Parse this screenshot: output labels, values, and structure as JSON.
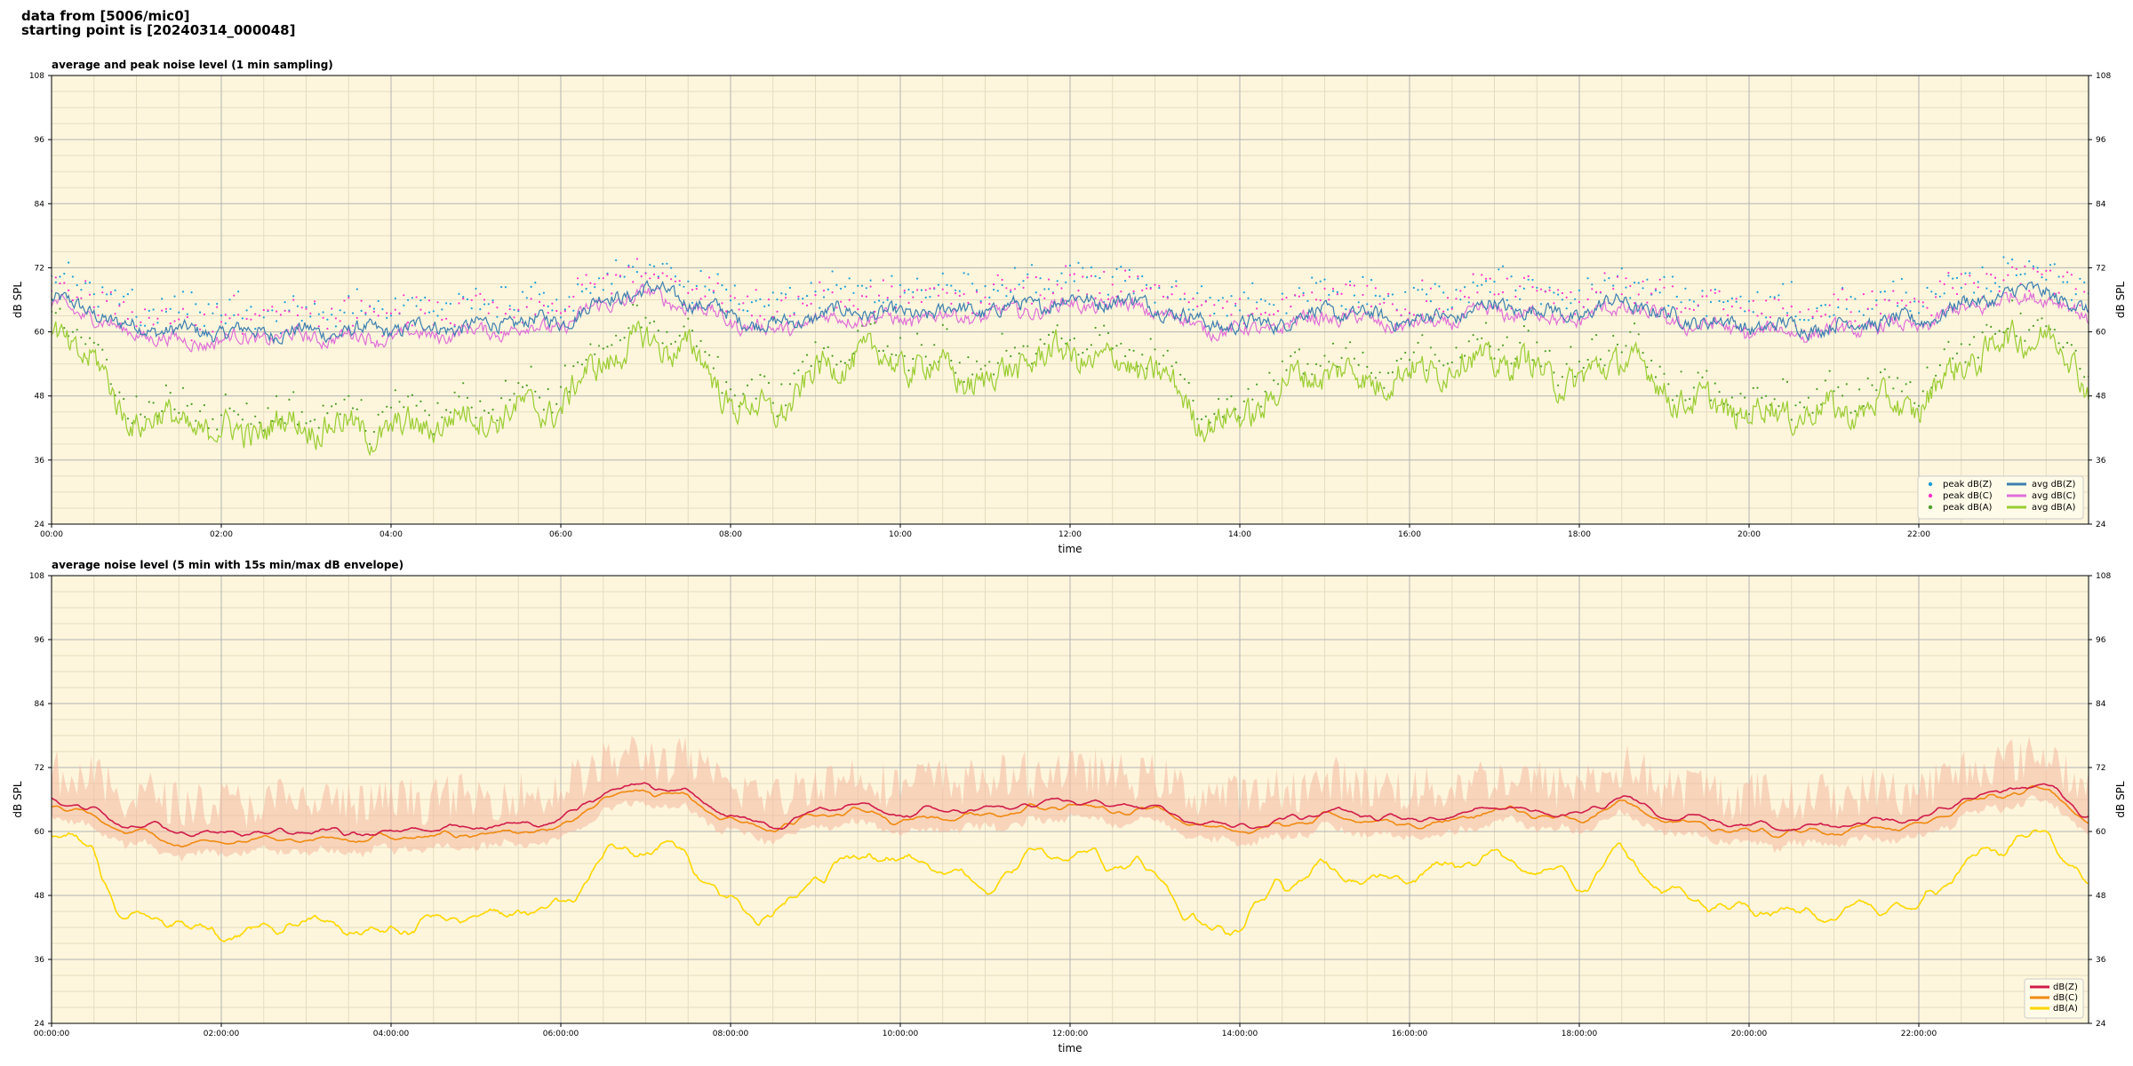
{
  "header": {
    "line1": "data from [5006/mic0]",
    "line2": "starting point is [20240314_000048]"
  },
  "colors": {
    "plot_bg": "#fdf6dc",
    "grid_major": "#b3b3b3",
    "grid_minor": "#e5dcc0",
    "peak_z": "#1f9ed8",
    "peak_c": "#ff33cc",
    "peak_a": "#4d9e28",
    "avg_z": "#3c7fb1",
    "avg_c": "#e070d8",
    "avg_a": "#9acd32",
    "env_z": "#d01c4a",
    "env_c": "#f08a10",
    "env_a": "#ffd700",
    "envelope_fill": "#f4b8a0"
  },
  "chart_data": [
    {
      "type": "line",
      "title": "average and peak noise level (1 min sampling)",
      "xlabel": "time",
      "ylabel": "dB SPL",
      "x_range_hours": [
        0,
        24
      ],
      "x_tick_labels": [
        "00:00",
        "02:00",
        "04:00",
        "06:00",
        "08:00",
        "10:00",
        "12:00",
        "14:00",
        "16:00",
        "18:00",
        "20:00",
        "22:00"
      ],
      "ylim": [
        24,
        108
      ],
      "y_ticks": [
        24,
        36,
        48,
        60,
        72,
        84,
        96,
        108
      ],
      "grid": true,
      "legend_position": "lower-right",
      "legend": [
        "peak dB(Z)",
        "peak dB(C)",
        "peak dB(A)",
        "avg dB(Z)",
        "avg dB(C)",
        "avg dB(A)"
      ],
      "series": [
        {
          "name": "avg dB(Z)",
          "x": [
            0,
            0.5,
            0.8,
            1.0,
            1.5,
            2.0,
            2.5,
            3.0,
            3.5,
            4.0,
            4.5,
            5.0,
            5.5,
            6.0,
            6.5,
            7.0,
            7.5,
            8.0,
            8.5,
            9.0,
            9.5,
            10.0,
            10.5,
            11.0,
            11.5,
            12.0,
            12.5,
            13.0,
            13.5,
            14.0,
            14.5,
            15.0,
            15.5,
            16.0,
            16.5,
            17.0,
            17.5,
            18.0,
            18.5,
            19.0,
            19.5,
            20.0,
            20.5,
            21.0,
            21.5,
            22.0,
            22.5,
            23.0,
            23.5,
            24.0
          ],
          "y": [
            66,
            64,
            61,
            61,
            60,
            60,
            60,
            60,
            60,
            60.5,
            61,
            61,
            62,
            62,
            66,
            68,
            66,
            63,
            61,
            63,
            64,
            63,
            64,
            64,
            65,
            66,
            66,
            65,
            62,
            61,
            62,
            64,
            63,
            62,
            63,
            65,
            64,
            63,
            66,
            63,
            62,
            61,
            61,
            61,
            62,
            62,
            65,
            67,
            68,
            63
          ]
        },
        {
          "name": "avg dB(C)",
          "x": [
            0,
            0.5,
            0.8,
            1.0,
            1.5,
            2.0,
            2.5,
            3.0,
            3.5,
            4.0,
            4.5,
            5.0,
            5.5,
            6.0,
            6.5,
            7.0,
            7.5,
            8.0,
            8.5,
            9.0,
            9.5,
            10.0,
            10.5,
            11.0,
            11.5,
            12.0,
            12.5,
            13.0,
            13.5,
            14.0,
            14.5,
            15.0,
            15.5,
            16.0,
            16.5,
            17.0,
            17.5,
            18.0,
            18.5,
            19.0,
            19.5,
            20.0,
            20.5,
            21.0,
            21.5,
            22.0,
            22.5,
            23.0,
            23.5,
            24.0
          ],
          "y": [
            65,
            63,
            60,
            60,
            58,
            58.5,
            59,
            59,
            59,
            59,
            59.5,
            60,
            60.5,
            61,
            65,
            67,
            65,
            62,
            60,
            62,
            63,
            62,
            63,
            63,
            64,
            65,
            65,
            64,
            61,
            60,
            61,
            63,
            62,
            61,
            62,
            64,
            63,
            62,
            65,
            62,
            61,
            60,
            60,
            60,
            61,
            61,
            64,
            66,
            67,
            62
          ]
        },
        {
          "name": "avg dB(A)",
          "x": [
            0,
            0.5,
            0.8,
            1.0,
            1.5,
            2.0,
            2.5,
            3.0,
            3.5,
            4.0,
            4.5,
            5.0,
            5.5,
            6.0,
            6.5,
            7.0,
            7.5,
            8.0,
            8.5,
            9.0,
            9.5,
            10.0,
            10.5,
            11.0,
            11.5,
            12.0,
            12.5,
            13.0,
            13.5,
            14.0,
            14.5,
            15.0,
            15.5,
            16.0,
            16.5,
            17.0,
            17.5,
            18.0,
            18.5,
            19.0,
            19.5,
            20.0,
            20.5,
            21.0,
            21.5,
            22.0,
            22.5,
            23.0,
            23.5,
            24.0
          ],
          "y": [
            60,
            55,
            45,
            44,
            43,
            41,
            42,
            43,
            42,
            41,
            43,
            44,
            45,
            46,
            55,
            58,
            57,
            47,
            44,
            52,
            56,
            54,
            53,
            50,
            55,
            56,
            54,
            53,
            44,
            43,
            50,
            53,
            51,
            52,
            54,
            55,
            53,
            50,
            56,
            49,
            46,
            45,
            45,
            45,
            46,
            46,
            54,
            58,
            60,
            50
          ]
        }
      ]
    },
    {
      "type": "line",
      "title": "average noise level (5 min with 15s min/max dB envelope)",
      "xlabel": "time",
      "ylabel": "dB SPL",
      "x_range_hours": [
        0,
        24
      ],
      "x_tick_labels": [
        "00:00:00",
        "02:00:00",
        "04:00:00",
        "06:00:00",
        "08:00:00",
        "10:00:00",
        "12:00:00",
        "14:00:00",
        "16:00:00",
        "18:00:00",
        "20:00:00",
        "22:00:00"
      ],
      "ylim": [
        24,
        108
      ],
      "y_ticks": [
        24,
        36,
        48,
        60,
        72,
        84,
        96,
        108
      ],
      "grid": true,
      "legend_position": "lower-right",
      "legend": [
        "dB(Z)",
        "dB(C)",
        "dB(A)"
      ],
      "series": [
        {
          "name": "dB(Z)",
          "x": [
            0,
            0.5,
            0.8,
            1.0,
            1.5,
            2.0,
            2.5,
            3.0,
            3.5,
            4.0,
            4.5,
            5.0,
            5.5,
            6.0,
            6.5,
            7.0,
            7.5,
            8.0,
            8.5,
            9.0,
            9.5,
            10.0,
            10.5,
            11.0,
            11.5,
            12.0,
            12.5,
            13.0,
            13.5,
            14.0,
            14.5,
            15.0,
            15.5,
            16.0,
            16.5,
            17.0,
            17.5,
            18.0,
            18.5,
            19.0,
            19.5,
            20.0,
            20.5,
            21.0,
            21.5,
            22.0,
            22.5,
            23.0,
            23.5,
            24.0
          ],
          "y": [
            66,
            64,
            61,
            61,
            60,
            59.5,
            60,
            60,
            60,
            60,
            60.5,
            61,
            61.5,
            62,
            67,
            69,
            67,
            63,
            61,
            64,
            65,
            63,
            64,
            64,
            65,
            66,
            65,
            65,
            62,
            61,
            62,
            64,
            63,
            62,
            63,
            65,
            64,
            63,
            67,
            63,
            62,
            61,
            61,
            61,
            62,
            62,
            66,
            68,
            69,
            63
          ]
        },
        {
          "name": "dB(C)",
          "x": [
            0,
            0.5,
            0.8,
            1.0,
            1.5,
            2.0,
            2.5,
            3.0,
            3.5,
            4.0,
            4.5,
            5.0,
            5.5,
            6.0,
            6.5,
            7.0,
            7.5,
            8.0,
            8.5,
            9.0,
            9.5,
            10.0,
            10.5,
            11.0,
            11.5,
            12.0,
            12.5,
            13.0,
            13.5,
            14.0,
            14.5,
            15.0,
            15.5,
            16.0,
            16.5,
            17.0,
            17.5,
            18.0,
            18.5,
            19.0,
            19.5,
            20.0,
            20.5,
            21.0,
            21.5,
            22.0,
            22.5,
            23.0,
            23.5,
            24.0
          ],
          "y": [
            65,
            63,
            60,
            60,
            57.5,
            58,
            58.5,
            58.5,
            58.5,
            58.5,
            59,
            59.5,
            60,
            60.5,
            66,
            68,
            66,
            62,
            60,
            63,
            64,
            62,
            63,
            63,
            64,
            65,
            64,
            64,
            61,
            60,
            61,
            63,
            62,
            61,
            62,
            64,
            63,
            62,
            66,
            62,
            61,
            60,
            60,
            60,
            61,
            61,
            65,
            67,
            68,
            62
          ]
        },
        {
          "name": "dB(A)",
          "x": [
            0,
            0.5,
            0.8,
            1.0,
            1.5,
            2.0,
            2.5,
            3.0,
            3.5,
            4.0,
            4.5,
            5.0,
            5.5,
            6.0,
            6.5,
            7.0,
            7.5,
            8.0,
            8.5,
            9.0,
            9.5,
            10.0,
            10.5,
            11.0,
            11.5,
            12.0,
            12.5,
            13.0,
            13.5,
            14.0,
            14.5,
            15.0,
            15.5,
            16.0,
            16.5,
            17.0,
            17.5,
            18.0,
            18.5,
            19.0,
            19.5,
            20.0,
            20.5,
            21.0,
            21.5,
            22.0,
            22.5,
            23.0,
            23.5,
            24.0
          ],
          "y": [
            60,
            56,
            45,
            44,
            43,
            40,
            42,
            43,
            42,
            41,
            43,
            44,
            45,
            46,
            55,
            57,
            56,
            46,
            44,
            52,
            56,
            54,
            53,
            49,
            55,
            56,
            54,
            53,
            42,
            42,
            50,
            53,
            51,
            52,
            54,
            55,
            53,
            50,
            56,
            49,
            46,
            45,
            45,
            45,
            46,
            46,
            54,
            58,
            60,
            50
          ]
        }
      ]
    }
  ]
}
